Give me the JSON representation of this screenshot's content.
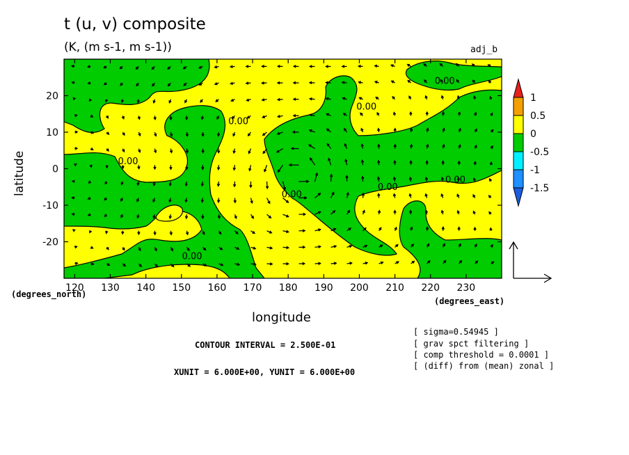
{
  "chart_data": {
    "type": "heatmap",
    "title": "t (u, v) composite",
    "subtitle": "(K, (m s-1, m s-1))",
    "tag": "adj_b",
    "xlabel": "longitude",
    "ylabel": "latitude",
    "x_unit": "(degrees_east)",
    "y_unit": "(degrees_north)",
    "xlim": [
      117,
      240
    ],
    "ylim": [
      -30,
      30
    ],
    "x_ticks": [
      "120",
      "130",
      "140",
      "150",
      "160",
      "170",
      "180",
      "190",
      "200",
      "210",
      "220",
      "230"
    ],
    "y_ticks": [
      "20",
      "10",
      "0",
      "-10",
      "-20"
    ],
    "colorbar": {
      "labels": [
        "1",
        "0.5",
        "0",
        "-0.5",
        "-1",
        "-1.5"
      ],
      "colors": [
        "#e8201c",
        "#f5a000",
        "#ffff00",
        "#00cc00",
        "#00f0ff",
        "#1e90ff",
        "#1b5de0"
      ]
    },
    "contour_labels": [
      {
        "text": "0.00",
        "lon": 224,
        "lat": 24
      },
      {
        "text": "0.00",
        "lon": 202,
        "lat": 17
      },
      {
        "text": "0.00",
        "lon": 166,
        "lat": 13
      },
      {
        "text": "0.00",
        "lon": 135,
        "lat": 2
      },
      {
        "text": "0.00",
        "lon": 181,
        "lat": -7
      },
      {
        "text": "0.00",
        "lon": 208,
        "lat": -5
      },
      {
        "text": "0.00",
        "lon": 227,
        "lat": -3
      },
      {
        "text": "0.00",
        "lon": 153,
        "lat": -24
      }
    ],
    "vector_reference": {
      "xunit": "6.000E+00",
      "yunit": "6.000E+00"
    },
    "contour_interval": "2.500E-01"
  },
  "info": {
    "contour": "CONTOUR INTERVAL = 2.500E-01",
    "units": "XUNIT = 6.000E+00, YUNIT = 6.000E+00"
  },
  "notes": [
    "[ sigma=0.54945 ]",
    "[ grav spct filtering ]",
    "[ comp threshold = 0.0001 ]",
    "[ (diff) from (mean) zonal ]"
  ]
}
